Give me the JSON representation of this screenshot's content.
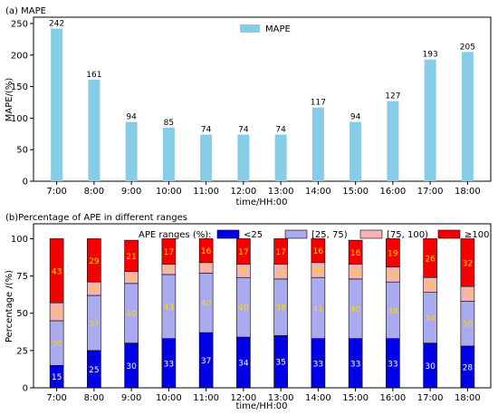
{
  "chart_data": [
    {
      "panel_label": "(a) MAPE",
      "type": "bar",
      "categories": [
        "7:00",
        "8:00",
        "9:00",
        "10:00",
        "11:00",
        "12:00",
        "13:00",
        "14:00",
        "15:00",
        "16:00",
        "17:00",
        "18:00"
      ],
      "series": [
        {
          "name": "MAPE",
          "values": [
            242,
            161,
            94,
            85,
            74,
            74,
            74,
            117,
            94,
            127,
            193,
            205
          ],
          "color": "#87cde8"
        }
      ],
      "xlabel": "time/HH:00",
      "ylabel": "MAPE/(%)",
      "ylim": [
        0,
        260
      ],
      "yticks": [
        0,
        50,
        100,
        150,
        200,
        250
      ],
      "legend": "top-center",
      "grid": false
    },
    {
      "panel_label": "(b)Percentage of APE in different ranges",
      "type": "bar",
      "stacked": true,
      "categories": [
        "7:00",
        "8:00",
        "9:00",
        "10:00",
        "11:00",
        "12:00",
        "13:00",
        "14:00",
        "15:00",
        "16:00",
        "17:00",
        "18:00"
      ],
      "legend_title": "APE ranges (%):",
      "series": [
        {
          "name": "<25",
          "values": [
            15,
            25,
            30,
            33,
            37,
            34,
            35,
            33,
            33,
            33,
            30,
            28
          ],
          "color": "#0000e6",
          "label_color": "#ffffff"
        },
        {
          "name": "[25, 75)",
          "values": [
            30,
            37,
            40,
            43,
            40,
            40,
            38,
            41,
            40,
            38,
            34,
            30
          ],
          "color": "#aaaaee",
          "label_color": "#ffd700"
        },
        {
          "name": "[75, 100)",
          "values": [
            12,
            9,
            8,
            7,
            7,
            9,
            10,
            10,
            10,
            10,
            10,
            10
          ],
          "color": "#f6b3b3",
          "label_color": "#ffd700"
        },
        {
          "name": "≥100",
          "values": [
            43,
            29,
            21,
            17,
            16,
            17,
            17,
            16,
            16,
            19,
            26,
            32
          ],
          "color": "#f40000",
          "label_color": "#ffd700"
        }
      ],
      "xlabel": "time/HH:00",
      "ylabel": "Percentage /(%)",
      "ylim": [
        0,
        110
      ],
      "yticks": [
        0,
        25,
        50,
        75,
        100
      ],
      "legend": "top-right",
      "grid": false
    }
  ]
}
